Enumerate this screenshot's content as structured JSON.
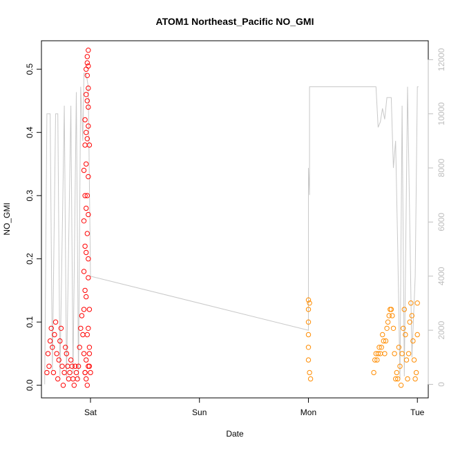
{
  "chart_data": {
    "type": "scatter",
    "title": "ATOM1 Northeast_Pacific NO_GMI",
    "xlabel": "Date",
    "ylabel": "NO_GMI",
    "x_ticks": [
      {
        "label": "Sat",
        "day": 1.0
      },
      {
        "label": "Sun",
        "day": 2.0
      },
      {
        "label": "Mon",
        "day": 3.0
      },
      {
        "label": "Tue",
        "day": 4.0
      }
    ],
    "xlim": [
      0.55,
      4.1
    ],
    "ylim": [
      -0.02,
      0.545
    ],
    "y_ticks": [
      0.0,
      0.1,
      0.2,
      0.3,
      0.4,
      0.5
    ],
    "y2_ticks": [
      0,
      2000,
      4000,
      6000,
      8000,
      10000,
      12000
    ],
    "y2lim": [
      -500,
      12700
    ],
    "grid": false,
    "colors": {
      "series_red": "#ff0000",
      "series_orange": "#ff8c00",
      "altitude_line": "#c8c8c8",
      "axis": "#000000",
      "right_axis": "#bdbdbd"
    },
    "series": [
      {
        "color": "red",
        "marker": "open-circle",
        "points": [
          [
            0.6,
            0.02
          ],
          [
            0.61,
            0.05
          ],
          [
            0.62,
            0.03
          ],
          [
            0.63,
            0.07
          ],
          [
            0.64,
            0.09
          ],
          [
            0.65,
            0.06
          ],
          [
            0.66,
            0.02
          ],
          [
            0.67,
            0.08
          ],
          [
            0.68,
            0.1
          ],
          [
            0.69,
            0.05
          ],
          [
            0.7,
            0.01
          ],
          [
            0.71,
            0.04
          ],
          [
            0.72,
            0.07
          ],
          [
            0.73,
            0.09
          ],
          [
            0.74,
            0.03
          ],
          [
            0.75,
            0.0
          ],
          [
            0.76,
            0.02
          ],
          [
            0.77,
            0.06
          ],
          [
            0.78,
            0.05
          ],
          [
            0.79,
            0.03
          ],
          [
            0.8,
            0.01
          ],
          [
            0.81,
            0.02
          ],
          [
            0.82,
            0.04
          ],
          [
            0.83,
            0.03
          ],
          [
            0.84,
            0.01
          ],
          [
            0.85,
            0.0
          ],
          [
            0.86,
            0.03
          ],
          [
            0.87,
            0.02
          ],
          [
            0.88,
            0.01
          ],
          [
            0.89,
            0.03
          ],
          [
            0.9,
            0.06
          ],
          [
            0.91,
            0.09
          ],
          [
            0.92,
            0.11
          ],
          [
            0.93,
            0.08
          ],
          [
            0.94,
            0.05
          ],
          [
            0.95,
            0.02
          ],
          [
            0.96,
            0.01
          ],
          [
            0.97,
            0.0
          ],
          [
            0.98,
            0.03
          ],
          [
            0.99,
            0.05
          ],
          [
            0.94,
            0.12
          ],
          [
            0.95,
            0.15
          ],
          [
            0.94,
            0.18
          ],
          [
            0.95,
            0.22
          ],
          [
            0.94,
            0.26
          ],
          [
            0.95,
            0.3
          ],
          [
            0.94,
            0.34
          ],
          [
            0.95,
            0.38
          ],
          [
            0.95,
            0.42
          ],
          [
            0.96,
            0.46
          ],
          [
            0.96,
            0.4
          ],
          [
            0.96,
            0.35
          ],
          [
            0.96,
            0.28
          ],
          [
            0.96,
            0.21
          ],
          [
            0.96,
            0.14
          ],
          [
            0.97,
            0.08
          ],
          [
            0.96,
            0.04
          ],
          [
            0.95,
            0.02
          ],
          [
            0.96,
            0.5
          ],
          [
            0.97,
            0.52
          ],
          [
            0.97,
            0.49
          ],
          [
            0.98,
            0.47
          ],
          [
            0.98,
            0.44
          ],
          [
            0.98,
            0.41
          ],
          [
            0.99,
            0.38
          ],
          [
            0.97,
            0.45
          ],
          [
            0.97,
            0.39
          ],
          [
            0.98,
            0.33
          ],
          [
            0.98,
            0.27
          ],
          [
            0.98,
            0.2
          ],
          [
            0.99,
            0.12
          ],
          [
            0.99,
            0.06
          ],
          [
            0.99,
            0.03
          ],
          [
            1.0,
            0.02
          ],
          [
            0.97,
            0.3
          ],
          [
            0.97,
            0.24
          ],
          [
            0.98,
            0.17
          ],
          [
            0.98,
            0.09
          ],
          [
            0.97,
            0.51
          ],
          [
            0.98,
            0.53
          ],
          [
            0.98,
            0.505
          ]
        ]
      },
      {
        "color": "orange",
        "marker": "open-circle",
        "points": [
          [
            3.0,
            0.135
          ],
          [
            3.0,
            0.12
          ],
          [
            3.0,
            0.1
          ],
          [
            3.0,
            0.08
          ],
          [
            3.0,
            0.06
          ],
          [
            3.0,
            0.04
          ],
          [
            3.01,
            0.02
          ],
          [
            3.02,
            0.01
          ],
          [
            3.01,
            0.13
          ],
          [
            3.6,
            0.02
          ],
          [
            3.61,
            0.04
          ],
          [
            3.62,
            0.05
          ],
          [
            3.63,
            0.04
          ],
          [
            3.64,
            0.05
          ],
          [
            3.65,
            0.06
          ],
          [
            3.66,
            0.05
          ],
          [
            3.67,
            0.06
          ],
          [
            3.68,
            0.08
          ],
          [
            3.69,
            0.07
          ],
          [
            3.7,
            0.05
          ],
          [
            3.71,
            0.07
          ],
          [
            3.72,
            0.09
          ],
          [
            3.73,
            0.1
          ],
          [
            3.74,
            0.11
          ],
          [
            3.75,
            0.12
          ],
          [
            3.76,
            0.12
          ],
          [
            3.77,
            0.11
          ],
          [
            3.78,
            0.09
          ],
          [
            3.79,
            0.05
          ],
          [
            3.8,
            0.01
          ],
          [
            3.81,
            0.02
          ],
          [
            3.82,
            0.01
          ],
          [
            3.83,
            0.06
          ],
          [
            3.84,
            0.03
          ],
          [
            3.85,
            0.0
          ],
          [
            3.86,
            0.05
          ],
          [
            3.87,
            0.09
          ],
          [
            3.88,
            0.12
          ],
          [
            3.89,
            0.08
          ],
          [
            3.9,
            0.04
          ],
          [
            3.91,
            0.01
          ],
          [
            3.92,
            0.05
          ],
          [
            3.93,
            0.1
          ],
          [
            3.94,
            0.13
          ],
          [
            3.95,
            0.11
          ],
          [
            3.96,
            0.07
          ],
          [
            3.97,
            0.04
          ],
          [
            3.98,
            0.01
          ],
          [
            3.99,
            0.02
          ],
          [
            4.0,
            0.08
          ],
          [
            4.0,
            0.13
          ]
        ]
      },
      {
        "color": "altitude",
        "marker": "line",
        "axis": "right",
        "points": [
          [
            0.58,
            0
          ],
          [
            0.6,
            10000
          ],
          [
            0.63,
            10000
          ],
          [
            0.65,
            500
          ],
          [
            0.68,
            10000
          ],
          [
            0.7,
            10000
          ],
          [
            0.72,
            300
          ],
          [
            0.76,
            10300
          ],
          [
            0.78,
            200
          ],
          [
            0.82,
            10300
          ],
          [
            0.84,
            400
          ],
          [
            0.87,
            10800
          ],
          [
            0.89,
            200
          ],
          [
            0.91,
            11000
          ],
          [
            0.93,
            9000
          ],
          [
            0.94,
            11500
          ],
          [
            0.96,
            11500
          ],
          [
            0.98,
            11000
          ],
          [
            1.0,
            4000
          ],
          [
            3.0,
            2000
          ],
          [
            3.0,
            8000
          ],
          [
            3.01,
            7000
          ],
          [
            3.01,
            11000
          ],
          [
            3.62,
            11000
          ],
          [
            3.64,
            9500
          ],
          [
            3.66,
            9700
          ],
          [
            3.68,
            10200
          ],
          [
            3.7,
            9800
          ],
          [
            3.72,
            10600
          ],
          [
            3.76,
            10600
          ],
          [
            3.78,
            8000
          ],
          [
            3.8,
            9000
          ],
          [
            3.82,
            5000
          ],
          [
            3.84,
            200
          ],
          [
            3.86,
            10300
          ],
          [
            3.88,
            300
          ],
          [
            3.91,
            11000
          ],
          [
            3.95,
            1000
          ],
          [
            3.98,
            4000
          ],
          [
            4.0,
            11000
          ],
          [
            4.01,
            11000
          ]
        ]
      }
    ]
  }
}
